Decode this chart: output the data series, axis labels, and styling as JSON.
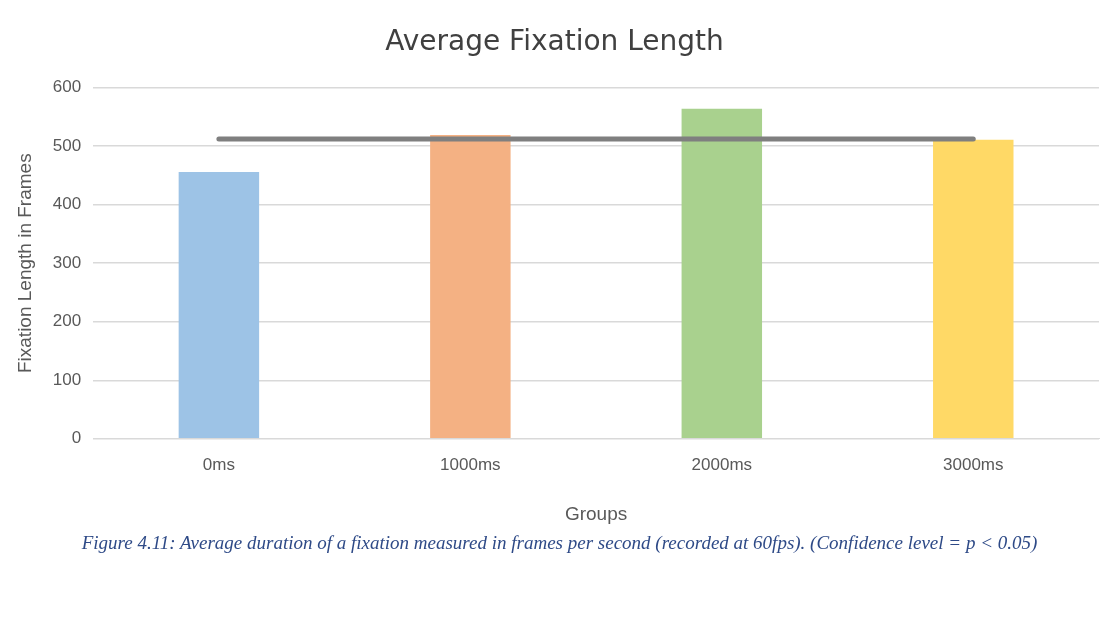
{
  "chart_data": {
    "type": "bar",
    "title": "Average Fixation Length",
    "xlabel": "Groups",
    "ylabel": "Fixation Length in Frames",
    "categories": [
      "0ms",
      "1000ms",
      "2000ms",
      "3000ms"
    ],
    "series": [
      {
        "colors": [
          "#9dc3e6",
          "#f4b183",
          "#a9d18e",
          "#ffd966"
        ],
        "values": [
          456,
          519,
          564,
          511
        ]
      },
      {
        "type": "line",
        "color": "#7f7f7f",
        "values": [
          512,
          512,
          512,
          512
        ]
      }
    ],
    "ylim": [
      0,
      600
    ],
    "yticks": [
      0,
      100,
      200,
      300,
      400,
      500,
      600
    ],
    "grid": "y",
    "legend": false,
    "marker": "none",
    "annotations": [
      "Figure 4.11: Average duration of a fixation measured in frames per second (recorded at 60fps). (Confidence level = p < 0.05)"
    ]
  }
}
